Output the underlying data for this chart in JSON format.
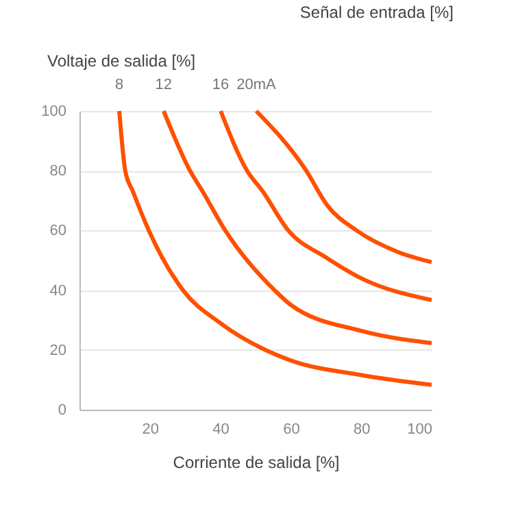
{
  "chart_data": {
    "type": "line",
    "xlabel": "Corriente de salida [%]",
    "ylabel": "Voltaje de salida [%]",
    "legend_title": "Señal de entrada [%]",
    "xlim": [
      0,
      100
    ],
    "xticks": [
      20,
      40,
      60,
      80,
      100
    ],
    "ylim": [
      0,
      100
    ],
    "yticks": [
      0,
      20,
      40,
      60,
      80,
      100
    ],
    "grid": "y",
    "marker": "none",
    "legend": "top",
    "series": [
      {
        "name": "8",
        "color": "#ff5000",
        "x": [
          11.3,
          13,
          15.2,
          19.7,
          29.4,
          40,
          52.8,
          60,
          80,
          100
        ],
        "values": [
          100,
          80,
          73,
          60,
          40,
          29,
          20,
          16.5,
          11.6,
          8.3
        ]
      },
      {
        "name": "12",
        "color": "#ff5000",
        "x": [
          23.9,
          31.4,
          35,
          41.4,
          55.4,
          60,
          80,
          100
        ],
        "values": [
          100,
          80,
          73,
          60,
          40,
          35.1,
          26.4,
          22.3
        ]
      },
      {
        "name": "16",
        "color": "#ff5000",
        "x": [
          40.1,
          47.6,
          52.1,
          59.3,
          70,
          80,
          100
        ],
        "values": [
          100,
          80,
          73,
          60,
          51,
          44,
          36.7
        ]
      },
      {
        "name": "20mA",
        "color": "#ff5000",
        "x": [
          50.2,
          64.4,
          70.3,
          78.7,
          90,
          100
        ],
        "values": [
          100,
          80,
          68.5,
          60,
          53,
          49.4
        ]
      }
    ]
  }
}
